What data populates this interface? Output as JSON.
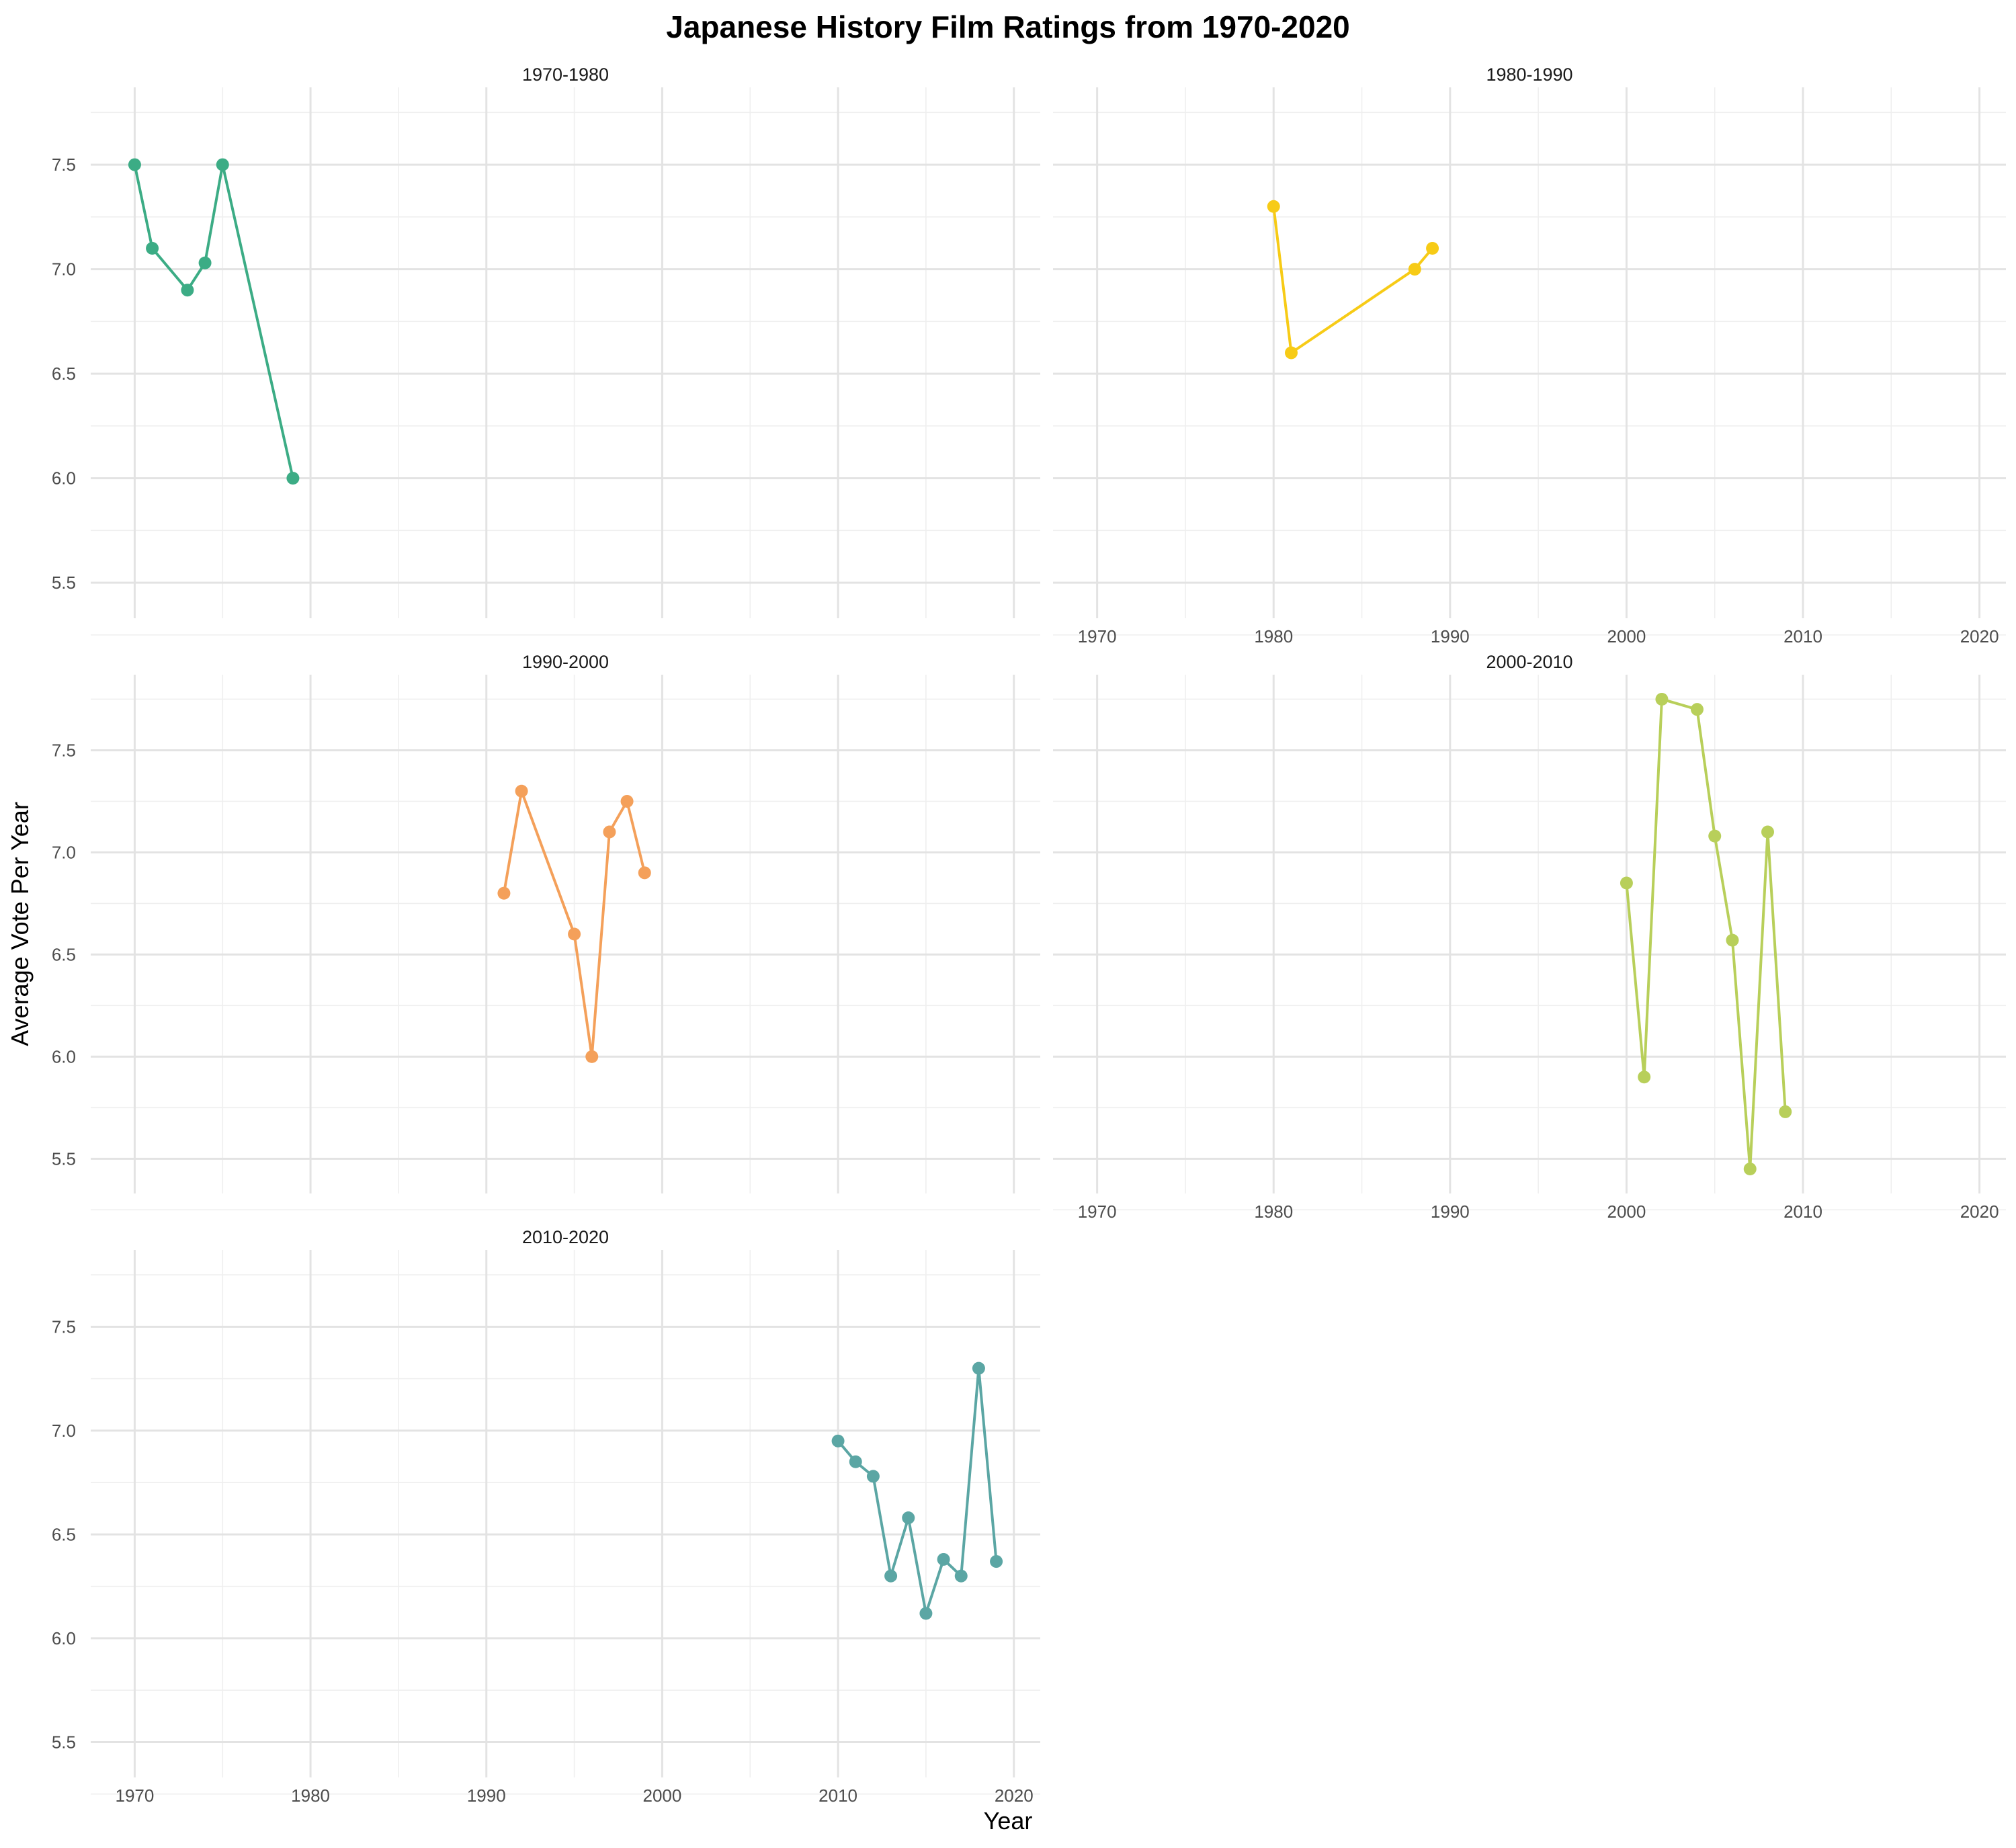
{
  "chart_data": {
    "type": "line",
    "title": "Japanese History Film Ratings from 1970-2020",
    "xlabel": "Year",
    "ylabel": "Average Vote Per Year",
    "xlim": [
      1967.5,
      2021.5
    ],
    "ylim": [
      5.33,
      7.87
    ],
    "x_ticks": [
      1970,
      1980,
      1990,
      2000,
      2010,
      2020
    ],
    "y_ticks": [
      5.5,
      6.0,
      6.5,
      7.0,
      7.5
    ],
    "grid": true,
    "legend": "none",
    "panels": [
      {
        "name": "1970-1980",
        "color": "#3cac85",
        "x": [
          1970,
          1971,
          1973,
          1974,
          1975,
          1979
        ],
        "y": [
          7.5,
          7.1,
          6.9,
          7.03,
          7.5,
          6.0
        ]
      },
      {
        "name": "1980-1990",
        "color": "#f7cb16",
        "x": [
          1980,
          1981,
          1988,
          1989
        ],
        "y": [
          7.3,
          6.6,
          7.0,
          7.1
        ]
      },
      {
        "name": "1990-2000",
        "color": "#f4a05a",
        "x": [
          1991,
          1992,
          1995,
          1996,
          1997,
          1998,
          1999
        ],
        "y": [
          6.8,
          7.3,
          6.6,
          6.0,
          7.1,
          7.25,
          6.9
        ]
      },
      {
        "name": "2000-2010",
        "color": "#b8cf5a",
        "x": [
          2000,
          2001,
          2002,
          2004,
          2005,
          2006,
          2007,
          2008,
          2009
        ],
        "y": [
          6.85,
          5.9,
          7.75,
          7.7,
          7.08,
          6.57,
          5.45,
          7.1,
          5.73
        ]
      },
      {
        "name": "2010-2020",
        "color": "#5ba6a4",
        "x": [
          2010,
          2011,
          2012,
          2013,
          2014,
          2015,
          2016,
          2017,
          2018,
          2019
        ],
        "y": [
          6.95,
          6.85,
          6.78,
          6.3,
          6.58,
          6.12,
          6.38,
          6.3,
          7.3,
          6.37
        ]
      }
    ]
  }
}
